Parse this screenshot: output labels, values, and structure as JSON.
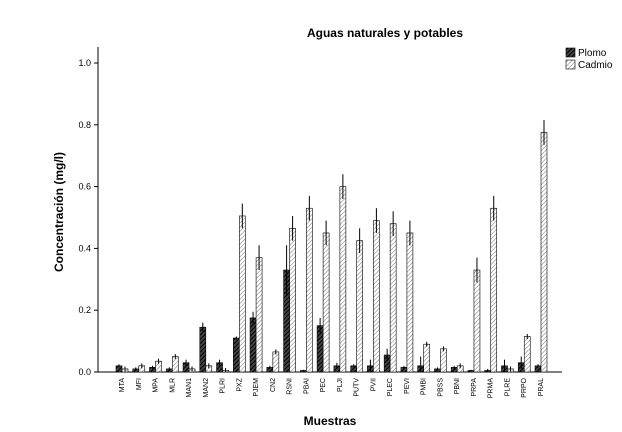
{
  "chart_data": {
    "type": "bar",
    "title": "Aguas naturales y potables",
    "xlabel": "Muestras",
    "ylabel": "Concentración (mg/l)",
    "ylim": [
      0,
      1.0
    ],
    "yticks": [
      "0.0",
      "0.2",
      "0.4",
      "0.6",
      "0.8",
      "1.0"
    ],
    "legend_position": "top-right",
    "error_bars": true,
    "categories": [
      "MTA",
      "MFI",
      "MPA",
      "MLR",
      "MAN1",
      "MAN2",
      "PLRI",
      "PXZ",
      "PJEM",
      "CN2",
      "RSNI",
      "PBAI",
      "PEC",
      "PLJI",
      "PUTV",
      "PVII",
      "PLEC",
      "PEVI",
      "PMBI",
      "PBSS",
      "PBNI",
      "PRPA",
      "PRMA",
      "PLRE",
      "PRPO",
      "PRAL"
    ],
    "series": [
      {
        "name": "Plomo",
        "pattern": "dark-hatch",
        "values": [
          0.02,
          0.01,
          0.015,
          0.01,
          0.03,
          0.145,
          0.03,
          0.11,
          0.175,
          0.015,
          0.33,
          0.005,
          0.15,
          0.02,
          0.02,
          0.02,
          0.055,
          0.015,
          0.02,
          0.01,
          0.015,
          0.005,
          0.005,
          0.02,
          0.03,
          0.02
        ],
        "errors": [
          0.005,
          0.005,
          0.005,
          0.005,
          0.01,
          0.015,
          0.01,
          0.005,
          0.02,
          0.005,
          0.08,
          0.002,
          0.025,
          0.01,
          0.005,
          0.02,
          0.02,
          0.005,
          0.03,
          0.005,
          0.005,
          0.002,
          0.005,
          0.02,
          0.02,
          0.005
        ]
      },
      {
        "name": "Cadmio",
        "pattern": "light-hatch",
        "values": [
          0.01,
          0.02,
          0.035,
          0.05,
          0.01,
          0.02,
          0.005,
          0.505,
          0.37,
          0.065,
          0.465,
          0.53,
          0.45,
          0.6,
          0.425,
          0.49,
          0.48,
          0.45,
          0.09,
          0.075,
          0.02,
          0.33,
          0.53,
          0.01,
          0.115,
          0.775
        ]
      }
    ]
  }
}
